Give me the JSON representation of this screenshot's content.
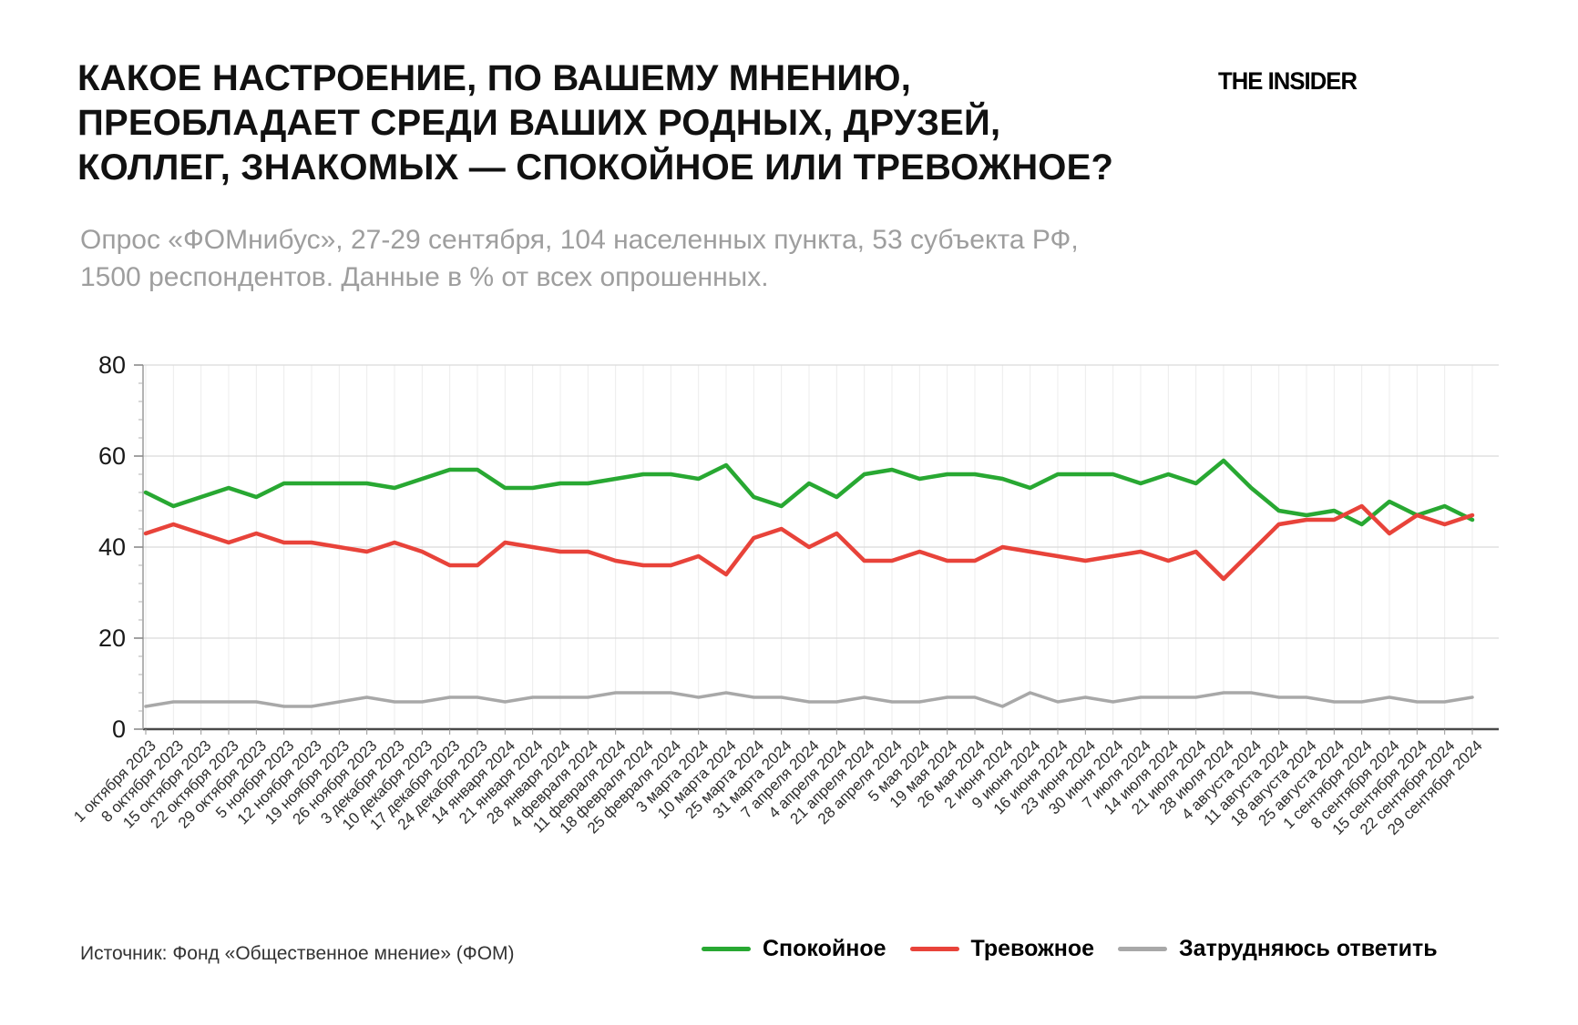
{
  "header": {
    "title": "КАКОЕ НАСТРОЕНИЕ, ПО ВАШЕМУ МНЕНИЮ,\nПРЕОБЛАДАЕТ СРЕДИ ВАШИХ РОДНЫХ, ДРУЗЕЙ,\nКОЛЛЕГ, ЗНАКОМЫХ — СПОКОЙНОЕ ИЛИ ТРЕВОЖНОЕ?",
    "logo": "THE INSIDER",
    "subtitle": "Опрос «ФОМнибус», 27-29 сентября, 104 населенных пункта, 53 субъекта РФ,\n1500 респондентов. Данные в % от всех опрошенных."
  },
  "footer": {
    "source": "Источник: Фонд «Общественное мнение» (ФОМ)"
  },
  "legend": [
    {
      "label": "Спокойное",
      "color": "#28a832"
    },
    {
      "label": "Тревожное",
      "color": "#e8433a"
    },
    {
      "label": "Затрудняюсь ответить",
      "color": "#a8a8a8"
    }
  ],
  "chart_data": {
    "type": "line",
    "title": "",
    "xlabel": "",
    "ylabel": "",
    "ylim": [
      0,
      80
    ],
    "yticks": [
      0,
      20,
      40,
      60,
      80
    ],
    "grid": true,
    "legend_position": "bottom",
    "x": [
      "1 октября 2023",
      "8 октября 2023",
      "15 октября 2023",
      "22 октября 2023",
      "29 октября 2023",
      "5 ноября 2023",
      "12 ноября 2023",
      "19 ноября 2023",
      "26 ноября 2023",
      "3 декабря 2023",
      "10 декабря 2023",
      "17 декабря 2023",
      "24 декабря 2023",
      "14 января 2024",
      "21 января 2024",
      "28 января 2024",
      "4 февраля 2024",
      "11 февраля 2024",
      "18 февраля 2024",
      "25 февраля 2024",
      "3 марта 2024",
      "10 марта 2024",
      "25 марта 2024",
      "31 марта 2024",
      "7 апреля 2024",
      "4 апреля 2024",
      "21 апреля 2024",
      "28 апреля 2024",
      "5 мая 2024",
      "19 мая 2024",
      "26 мая 2024",
      "2 июня 2024",
      "9 июня 2024",
      "16 июня 2024",
      "23 июня 2024",
      "30 июня 2024",
      "7 июля 2024",
      "14 июля 2024",
      "21 июля 2024",
      "28 июля 2024",
      "4 августа 2024",
      "11 августа 2024",
      "18 августа 2024",
      "25 августа 2024",
      "1 сентября 2024",
      "8 сентября 2024",
      "15 сентября 2024",
      "22 сентября 2024",
      "29 сентября 2024"
    ],
    "series": [
      {
        "name": "Спокойное",
        "color": "#28a832",
        "values": [
          52,
          49,
          51,
          53,
          51,
          54,
          54,
          54,
          54,
          53,
          55,
          57,
          57,
          53,
          53,
          54,
          54,
          55,
          56,
          56,
          55,
          58,
          51,
          49,
          54,
          51,
          56,
          57,
          55,
          56,
          56,
          55,
          53,
          56,
          56,
          56,
          54,
          56,
          54,
          59,
          53,
          48,
          47,
          48,
          45,
          50,
          47,
          49,
          46
        ]
      },
      {
        "name": "Тревожное",
        "color": "#e8433a",
        "values": [
          43,
          45,
          43,
          41,
          43,
          41,
          41,
          40,
          39,
          41,
          39,
          36,
          36,
          41,
          40,
          39,
          39,
          37,
          36,
          36,
          38,
          34,
          42,
          44,
          40,
          43,
          37,
          37,
          39,
          37,
          37,
          40,
          39,
          38,
          37,
          38,
          39,
          37,
          39,
          33,
          39,
          45,
          46,
          46,
          49,
          43,
          47,
          45,
          47
        ]
      },
      {
        "name": "Затрудняюсь ответить",
        "color": "#a8a8a8",
        "values": [
          5,
          6,
          6,
          6,
          6,
          5,
          5,
          6,
          7,
          6,
          6,
          7,
          7,
          6,
          7,
          7,
          7,
          8,
          8,
          8,
          7,
          8,
          7,
          7,
          6,
          6,
          7,
          6,
          6,
          7,
          7,
          5,
          8,
          6,
          7,
          6,
          7,
          7,
          7,
          8,
          8,
          7,
          7,
          6,
          6,
          7,
          6,
          6,
          7
        ]
      }
    ]
  }
}
